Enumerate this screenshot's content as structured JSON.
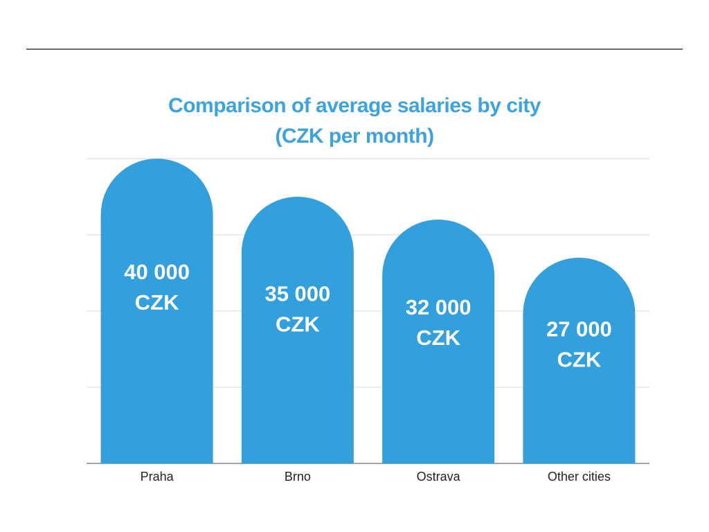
{
  "header": {
    "title_line1": "Comparison of average salaries by city",
    "title_line2": "(CZK per month)"
  },
  "colors": {
    "bar": "#33a0de",
    "title": "#3aa3e0",
    "grid": "#d9d9d9",
    "axis": "#6b6b6b"
  },
  "chart_data": {
    "type": "bar",
    "title": "Comparison of average salaries by city (CZK per month)",
    "xlabel": "",
    "ylabel": "",
    "categories": [
      "Praha",
      "Brno",
      "Ostrava",
      "Other cities"
    ],
    "values": [
      40000,
      35000,
      32000,
      27000
    ],
    "value_labels": [
      [
        "40 000",
        "CZK"
      ],
      [
        "35 000",
        "CZK"
      ],
      [
        "32 000",
        "CZK"
      ],
      [
        "27 000",
        "CZK"
      ]
    ],
    "ylim": [
      0,
      40000
    ],
    "grid": true,
    "legend": "none",
    "bar_style": "rounded-top"
  }
}
